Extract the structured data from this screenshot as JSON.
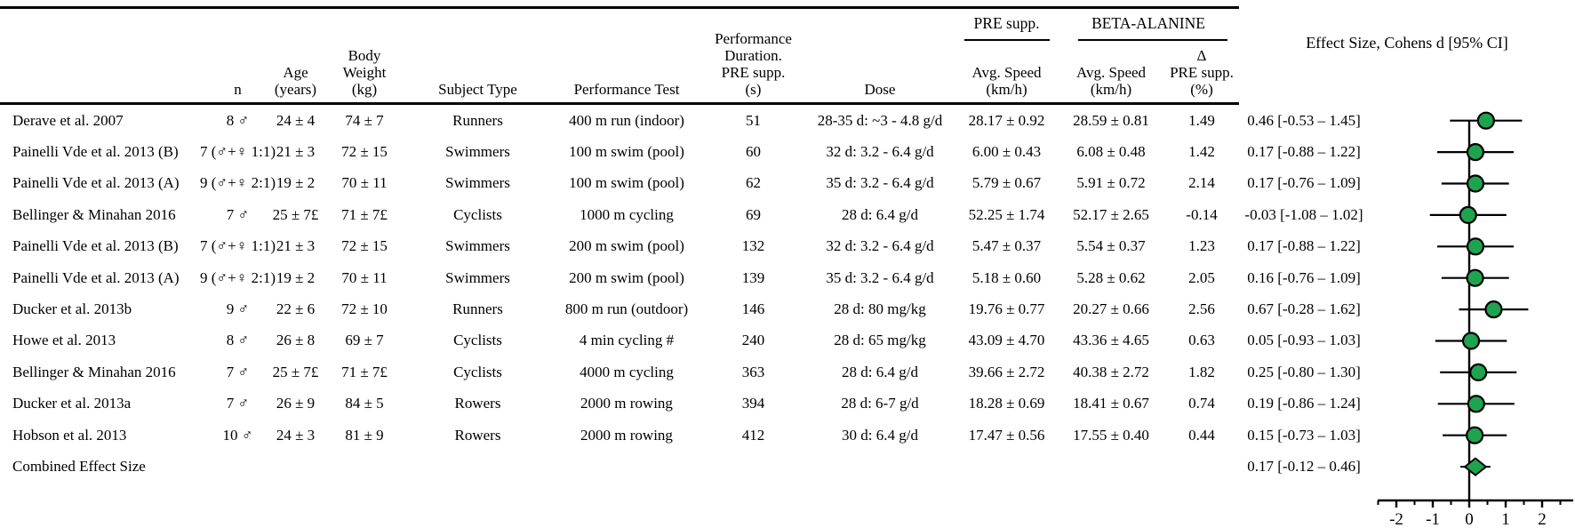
{
  "figure": {
    "group_pre": "PRE supp.",
    "group_beta": "BETA-ALANINE",
    "effect_header": "Effect Size, Cohens d [95% CI]"
  },
  "columns": [
    {
      "key": "study",
      "label": ""
    },
    {
      "key": "n",
      "label": "n"
    },
    {
      "key": "age",
      "label": "Age\n(years)"
    },
    {
      "key": "weight",
      "label": "Body\nWeight\n(kg)"
    },
    {
      "key": "subject",
      "label": "Subject Type"
    },
    {
      "key": "test",
      "label": "Performance Test"
    },
    {
      "key": "duration",
      "label": "Performance\nDuration.\nPRE supp.\n(s)"
    },
    {
      "key": "dose",
      "label": "Dose"
    },
    {
      "key": "pre_speed",
      "label": "Avg. Speed\n(km/h)"
    },
    {
      "key": "ba_speed",
      "label": "Avg. Speed\n(km/h)"
    },
    {
      "key": "delta",
      "label": "Δ\nPRE supp.\n(%)"
    },
    {
      "key": "effect",
      "label": ""
    }
  ],
  "rows": [
    {
      "study": "Derave et al. 2007",
      "n": "8 ♂",
      "age": "24 ± 4",
      "weight": "74 ± 7",
      "subject": "Runners",
      "test": "400 m run (indoor)",
      "duration": "51",
      "dose": "28-35 d: ~3 - 4.8 g/d",
      "pre_speed": "28.17 ± 0.92",
      "ba_speed": "28.59 ± 0.81",
      "delta": "1.49",
      "effect": "0.46 [-0.53 – 1.45]"
    },
    {
      "study": "Painelli Vde et al. 2013 (B)",
      "n": "7 (♂+♀ 1:1)",
      "age": "21 ± 3",
      "weight": "72 ± 15",
      "subject": "Swimmers",
      "test": "100 m swim (pool)",
      "duration": "60",
      "dose": "32 d: 3.2 - 6.4 g/d",
      "pre_speed": "6.00 ± 0.43",
      "ba_speed": "6.08 ± 0.48",
      "delta": "1.42",
      "effect": "0.17 [-0.88 – 1.22]"
    },
    {
      "study": "Painelli Vde et al. 2013 (A)",
      "n": "9 (♂+♀ 2:1)",
      "age": "19 ± 2",
      "weight": "70 ± 11",
      "subject": "Swimmers",
      "test": "100 m swim (pool)",
      "duration": "62",
      "dose": "35 d: 3.2 - 6.4 g/d",
      "pre_speed": "5.79 ± 0.67",
      "ba_speed": "5.91 ± 0.72",
      "delta": "2.14",
      "effect": "0.17 [-0.76 – 1.09]"
    },
    {
      "study": "Bellinger & Minahan  2016",
      "n": "7 ♂",
      "age": "25 ± 7£",
      "weight": "71 ± 7£",
      "subject": "Cyclists",
      "test": "1000 m cycling",
      "duration": "69",
      "dose": "28 d: 6.4 g/d",
      "pre_speed": "52.25 ± 1.74",
      "ba_speed": "52.17 ± 2.65",
      "delta": "-0.14",
      "effect": "-0.03 [-1.08 – 1.02]"
    },
    {
      "study": "Painelli Vde et al. 2013 (B)",
      "n": "7 (♂+♀ 1:1)",
      "age": "21 ± 3",
      "weight": "72 ± 15",
      "subject": "Swimmers",
      "test": "200 m swim (pool)",
      "duration": "132",
      "dose": "32 d: 3.2 - 6.4 g/d",
      "pre_speed": "5.47 ± 0.37",
      "ba_speed": "5.54 ± 0.37",
      "delta": "1.23",
      "effect": "0.17 [-0.88 – 1.22]"
    },
    {
      "study": "Painelli Vde et al. 2013 (A)",
      "n": "9 (♂+♀ 2:1)",
      "age": "19 ± 2",
      "weight": "70 ± 11",
      "subject": "Swimmers",
      "test": "200 m swim (pool)",
      "duration": "139",
      "dose": "35 d: 3.2 - 6.4 g/d",
      "pre_speed": "5.18 ± 0.60",
      "ba_speed": "5.28 ± 0.62",
      "delta": "2.05",
      "effect": "0.16 [-0.76 – 1.09]"
    },
    {
      "study": "Ducker et al. 2013b",
      "n": "9 ♂",
      "age": "22 ± 6",
      "weight": "72 ± 10",
      "subject": "Runners",
      "test": "800 m run (outdoor)",
      "duration": "146",
      "dose": "28 d: 80 mg/kg",
      "pre_speed": "19.76 ± 0.77",
      "ba_speed": "20.27 ± 0.66",
      "delta": "2.56",
      "effect": "0.67 [-0.28 – 1.62]"
    },
    {
      "study": "Howe et al. 2013",
      "n": "8 ♂",
      "age": "26 ± 8",
      "weight": "69 ± 7",
      "subject": "Cyclists",
      "test": "4 min cycling #",
      "duration": "240",
      "dose": "28 d: 65 mg/kg",
      "pre_speed": "43.09 ± 4.70",
      "ba_speed": "43.36 ± 4.65",
      "delta": "0.63",
      "effect": "0.05 [-0.93 – 1.03]"
    },
    {
      "study": "Bellinger & Minahan 2016",
      "n": "7 ♂",
      "age": "25 ± 7£",
      "weight": "71 ± 7£",
      "subject": "Cyclists",
      "test": "4000 m cycling",
      "duration": "363",
      "dose": "28 d: 6.4 g/d",
      "pre_speed": "39.66 ± 2.72",
      "ba_speed": "40.38 ± 2.72",
      "delta": "1.82",
      "effect": "0.25 [-0.80 – 1.30]"
    },
    {
      "study": "Ducker et al. 2013a",
      "n": "7 ♂",
      "age": "26 ± 9",
      "weight": "84 ± 5",
      "subject": "Rowers",
      "test": "2000 m rowing",
      "duration": "394",
      "dose": "28 d: 6-7 g/d",
      "pre_speed": "18.28 ± 0.69",
      "ba_speed": "18.41 ± 0.67",
      "delta": "0.74",
      "effect": "0.19 [-0.86 – 1.24]"
    },
    {
      "study": "Hobson et al. 2013",
      "n": "10 ♂",
      "age": "24 ± 3",
      "weight": "81 ± 9",
      "subject": "Rowers",
      "test": "2000 m rowing",
      "duration": "412",
      "dose": "30 d: 6.4 g/d",
      "pre_speed": "17.47 ± 0.56",
      "ba_speed": "17.55 ± 0.40",
      "delta": "0.44",
      "effect": "0.15 [-0.73 – 1.03]"
    }
  ],
  "combined": {
    "study": "Combined Effect Size",
    "effect": "0.17 [-0.12 – 0.46]"
  },
  "chart_data": {
    "type": "scatter",
    "subtype": "forest-plot",
    "title": "Effect Size, Cohens d [95% CI]",
    "xlabel": "Cohens d",
    "x_range": [
      -2.6,
      2.85
    ],
    "x_ticks": [
      -2,
      -1,
      0,
      1,
      2
    ],
    "x_minor_ticks": [
      -2.5,
      -1.5,
      -0.5,
      0.5,
      1.5,
      2.5
    ],
    "zero_line": 0,
    "marker_color": "#1ea34f",
    "grid": false,
    "points": [
      {
        "label": "Derave et al. 2007",
        "d": 0.46,
        "ci": [
          -0.53,
          1.45
        ]
      },
      {
        "label": "Painelli Vde et al. 2013 (B)",
        "d": 0.17,
        "ci": [
          -0.88,
          1.22
        ]
      },
      {
        "label": "Painelli Vde et al. 2013 (A)",
        "d": 0.17,
        "ci": [
          -0.76,
          1.09
        ]
      },
      {
        "label": "Bellinger & Minahan 2016",
        "d": -0.03,
        "ci": [
          -1.08,
          1.02
        ]
      },
      {
        "label": "Painelli Vde et al. 2013 (B)",
        "d": 0.17,
        "ci": [
          -0.88,
          1.22
        ]
      },
      {
        "label": "Painelli Vde et al. 2013 (A)",
        "d": 0.16,
        "ci": [
          -0.76,
          1.09
        ]
      },
      {
        "label": "Ducker et al. 2013b",
        "d": 0.67,
        "ci": [
          -0.28,
          1.62
        ]
      },
      {
        "label": "Howe et al. 2013",
        "d": 0.05,
        "ci": [
          -0.93,
          1.03
        ]
      },
      {
        "label": "Bellinger & Minahan 2016",
        "d": 0.25,
        "ci": [
          -0.8,
          1.3
        ]
      },
      {
        "label": "Ducker et al. 2013a",
        "d": 0.19,
        "ci": [
          -0.86,
          1.24
        ]
      },
      {
        "label": "Hobson et al. 2013",
        "d": 0.15,
        "ci": [
          -0.73,
          1.03
        ]
      }
    ],
    "combined": {
      "label": "Combined Effect Size",
      "d": 0.17,
      "ci": [
        -0.12,
        0.46
      ],
      "shape": "diamond"
    }
  }
}
